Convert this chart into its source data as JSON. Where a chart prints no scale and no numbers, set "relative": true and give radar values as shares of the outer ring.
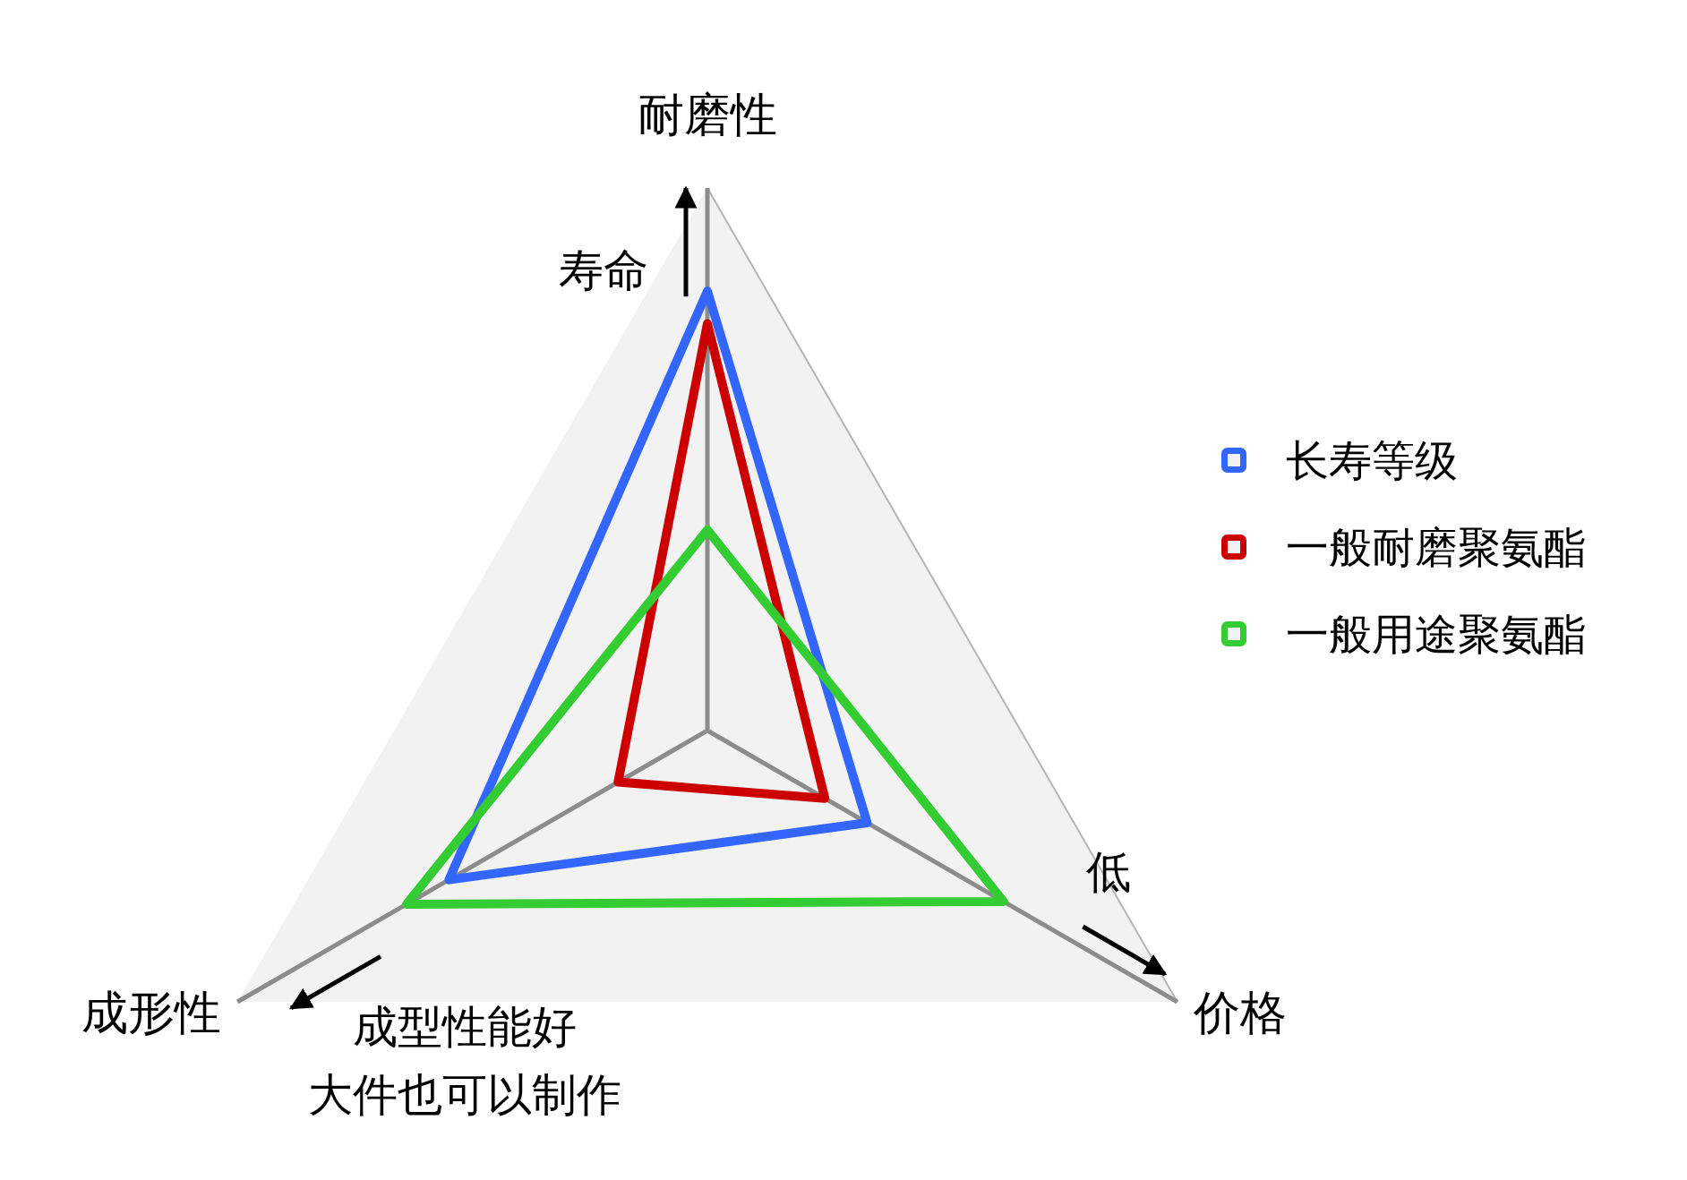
{
  "chart_data": {
    "type": "radar",
    "categories": [
      "耐磨性",
      "价格",
      "成形性"
    ],
    "relative": true,
    "series": [
      {
        "name": "长寿等级",
        "color": "#3366ff",
        "values": [
          0.81,
          0.34,
          0.55
        ]
      },
      {
        "name": "一般耐磨聚氨酯",
        "color": "#cc0000",
        "values": [
          0.75,
          0.25,
          0.19
        ]
      },
      {
        "name": "一般用途聚氨酯",
        "color": "#33cc33",
        "values": [
          0.37,
          0.63,
          0.64
        ]
      }
    ],
    "legend": "right",
    "annotations": [
      "寿命",
      "低",
      "成型性能好",
      "大件也可以制作"
    ]
  }
}
